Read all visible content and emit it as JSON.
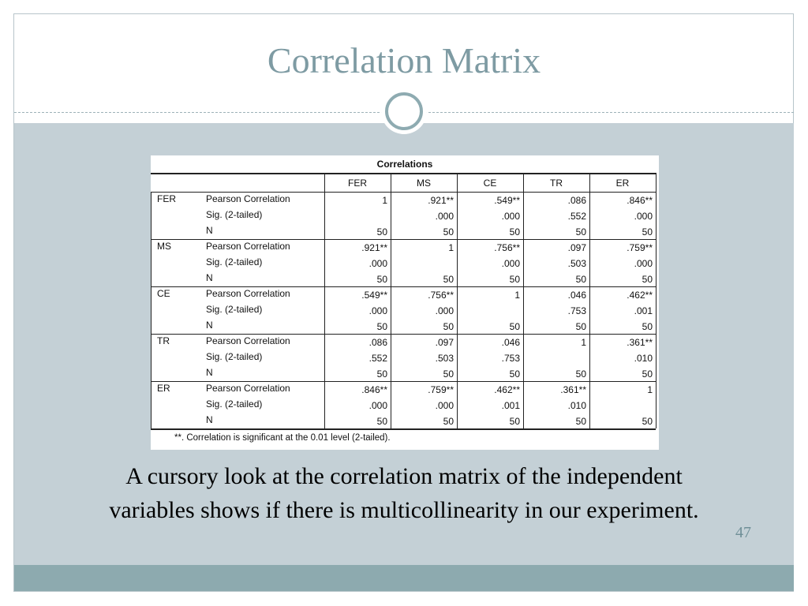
{
  "slide": {
    "title": "Correlation Matrix",
    "caption": "A cursory look at the correlation matrix  of the independent variables shows if there is multicollinearity in our experiment.",
    "page_number": "47"
  },
  "table": {
    "title": "Correlations",
    "columns": [
      "FER",
      "MS",
      "CE",
      "TR",
      "ER"
    ],
    "stat_labels": [
      "Pearson Correlation",
      "Sig. (2-tailed)",
      "N"
    ],
    "rows": [
      {
        "name": "FER",
        "pearson": [
          "1",
          ".921**",
          ".549**",
          ".086",
          ".846**"
        ],
        "sig": [
          "",
          ".000",
          ".000",
          ".552",
          ".000"
        ],
        "n": [
          "50",
          "50",
          "50",
          "50",
          "50"
        ]
      },
      {
        "name": "MS",
        "pearson": [
          ".921**",
          "1",
          ".756**",
          ".097",
          ".759**"
        ],
        "sig": [
          ".000",
          "",
          ".000",
          ".503",
          ".000"
        ],
        "n": [
          "50",
          "50",
          "50",
          "50",
          "50"
        ]
      },
      {
        "name": "CE",
        "pearson": [
          ".549**",
          ".756**",
          "1",
          ".046",
          ".462**"
        ],
        "sig": [
          ".000",
          ".000",
          "",
          ".753",
          ".001"
        ],
        "n": [
          "50",
          "50",
          "50",
          "50",
          "50"
        ]
      },
      {
        "name": "TR",
        "pearson": [
          ".086",
          ".097",
          ".046",
          "1",
          ".361**"
        ],
        "sig": [
          ".552",
          ".503",
          ".753",
          "",
          ".010"
        ],
        "n": [
          "50",
          "50",
          "50",
          "50",
          "50"
        ]
      },
      {
        "name": "ER",
        "pearson": [
          ".846**",
          ".759**",
          ".462**",
          ".361**",
          "1"
        ],
        "sig": [
          ".000",
          ".000",
          ".001",
          ".010",
          ""
        ],
        "n": [
          "50",
          "50",
          "50",
          "50",
          "50"
        ]
      }
    ],
    "footnote": "**. Correlation is significant at the 0.01 level (2-tailed)."
  },
  "colors": {
    "title": "#7e9ba3",
    "content_band": "#c4d0d6",
    "footer_band": "#8daaaf"
  }
}
